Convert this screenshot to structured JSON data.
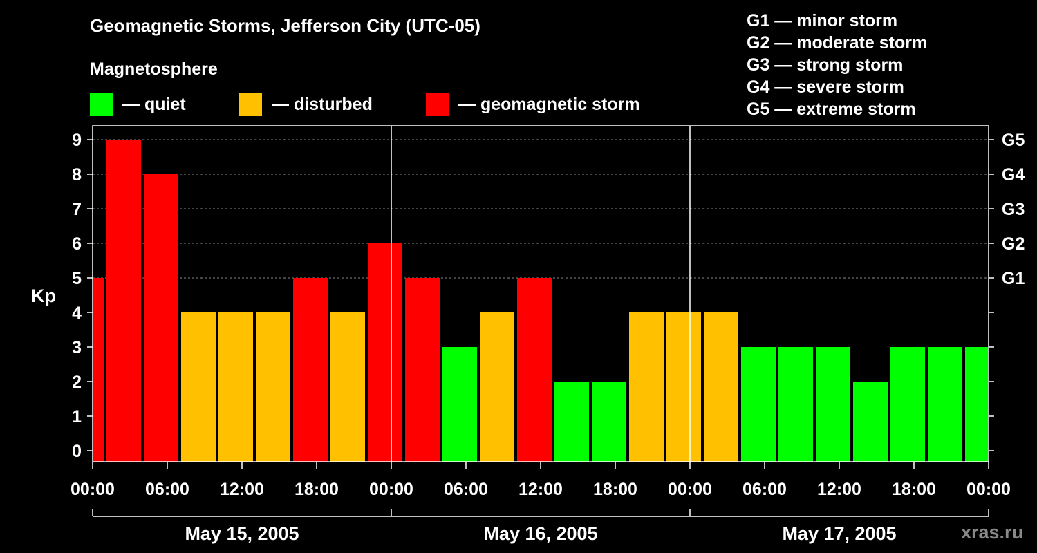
{
  "title": "Geomagnetic Storms, Jefferson City (UTC-05)",
  "magnetosphere_title": "Magnetosphere",
  "legend": [
    {
      "label": "— quiet",
      "color": "#00ff00"
    },
    {
      "label": "— disturbed",
      "color": "#ffc000"
    },
    {
      "label": "— geomagnetic storm",
      "color": "#ff0000"
    }
  ],
  "g_scale": [
    "G1 — minor storm",
    "G2 — moderate storm",
    "G3 — strong storm",
    "G4 — severe storm",
    "G5 — extreme storm"
  ],
  "watermark": "xras.ru",
  "chart_data": {
    "type": "bar",
    "ylabel": "Kp",
    "ylim": [
      0,
      9
    ],
    "y_ticks": [
      "0",
      "1",
      "2",
      "3",
      "4",
      "5",
      "6",
      "7",
      "8",
      "9"
    ],
    "right_ticks": [
      {
        "value": 5,
        "label": "G1"
      },
      {
        "value": 6,
        "label": "G2"
      },
      {
        "value": 7,
        "label": "G3"
      },
      {
        "value": 8,
        "label": "G4"
      },
      {
        "value": 9,
        "label": "G5"
      }
    ],
    "x_range_hours": [
      0,
      72
    ],
    "x_tick_labels": [
      "00:00",
      "06:00",
      "12:00",
      "18:00",
      "00:00",
      "06:00",
      "12:00",
      "18:00",
      "00:00",
      "06:00",
      "12:00",
      "18:00",
      "00:00"
    ],
    "dates": [
      "May 15, 2005",
      "May 16, 2005",
      "May 17, 2005"
    ],
    "grid": "dashed horizontal at Kp 5–9; solid vertical at day boundaries",
    "colors": {
      "quiet": "#00ff00",
      "disturbed": "#ffc000",
      "storm": "#ff0000"
    },
    "bars": [
      {
        "start": 0,
        "end": 1,
        "kp": 5,
        "level": "storm"
      },
      {
        "start": 1,
        "end": 4,
        "kp": 9,
        "level": "storm"
      },
      {
        "start": 4,
        "end": 7,
        "kp": 8,
        "level": "storm"
      },
      {
        "start": 7,
        "end": 10,
        "kp": 4,
        "level": "disturbed"
      },
      {
        "start": 10,
        "end": 13,
        "kp": 4,
        "level": "disturbed"
      },
      {
        "start": 13,
        "end": 16,
        "kp": 4,
        "level": "disturbed"
      },
      {
        "start": 16,
        "end": 19,
        "kp": 5,
        "level": "storm"
      },
      {
        "start": 19,
        "end": 22,
        "kp": 4,
        "level": "disturbed"
      },
      {
        "start": 22,
        "end": 25,
        "kp": 6,
        "level": "storm"
      },
      {
        "start": 25,
        "end": 28,
        "kp": 5,
        "level": "storm"
      },
      {
        "start": 28,
        "end": 31,
        "kp": 3,
        "level": "quiet"
      },
      {
        "start": 31,
        "end": 34,
        "kp": 4,
        "level": "disturbed"
      },
      {
        "start": 34,
        "end": 37,
        "kp": 5,
        "level": "storm"
      },
      {
        "start": 37,
        "end": 40,
        "kp": 2,
        "level": "quiet"
      },
      {
        "start": 40,
        "end": 43,
        "kp": 2,
        "level": "quiet"
      },
      {
        "start": 43,
        "end": 46,
        "kp": 4,
        "level": "disturbed"
      },
      {
        "start": 46,
        "end": 49,
        "kp": 4,
        "level": "disturbed"
      },
      {
        "start": 49,
        "end": 52,
        "kp": 4,
        "level": "disturbed"
      },
      {
        "start": 52,
        "end": 55,
        "kp": 3,
        "level": "quiet"
      },
      {
        "start": 55,
        "end": 58,
        "kp": 3,
        "level": "quiet"
      },
      {
        "start": 58,
        "end": 61,
        "kp": 3,
        "level": "quiet"
      },
      {
        "start": 61,
        "end": 64,
        "kp": 2,
        "level": "quiet"
      },
      {
        "start": 64,
        "end": 67,
        "kp": 3,
        "level": "quiet"
      },
      {
        "start": 67,
        "end": 70,
        "kp": 3,
        "level": "quiet"
      },
      {
        "start": 70,
        "end": 72,
        "kp": 3,
        "level": "quiet"
      }
    ]
  }
}
